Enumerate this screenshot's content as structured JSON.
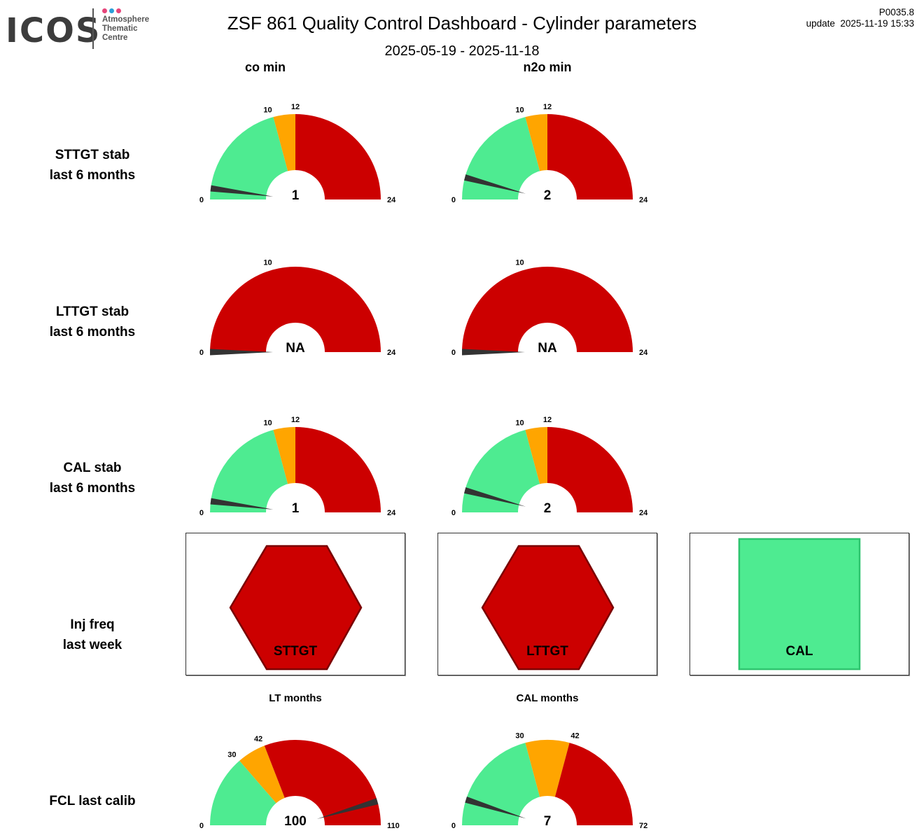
{
  "header": {
    "title": "ZSF 861 Quality Control Dashboard - Cylinder parameters",
    "date_range": "2025-05-19 - 2025-11-18",
    "code": "P0035.8",
    "update": "update  2025-11-19 15:33"
  },
  "logo": {
    "word": "ICOS",
    "lines": [
      "Atmosphere",
      "Thematic",
      "Centre"
    ],
    "dot_colors": [
      "#e6457a",
      "#2a9fd8",
      "#e6457a"
    ]
  },
  "colors": {
    "red": "#cc0000",
    "orange": "#ffa500",
    "green": "#4eeb91",
    "needle": "#333333",
    "hexagon_border": "#7a0000",
    "square_border": "#2fc46f"
  },
  "columns": [
    "co min",
    "n2o min"
  ],
  "rows": [
    {
      "line1": "STTGT stab",
      "line2": "last 6 months"
    },
    {
      "line1": "LTTGT stab",
      "line2": "last 6 months"
    },
    {
      "line1": "CAL stab",
      "line2": "last 6 months"
    },
    {
      "line1": "Inj freq",
      "line2": "last week"
    },
    {
      "line1": "FCL last calib",
      "line2": ""
    }
  ],
  "gauges": [
    {
      "id": "sttgt-co",
      "title": "",
      "min": 0,
      "max": 24,
      "value": 1,
      "display": "1",
      "bands": [
        {
          "from": 0,
          "to": 10,
          "color": "green"
        },
        {
          "from": 10,
          "to": 12,
          "color": "orange"
        },
        {
          "from": 12,
          "to": 24,
          "color": "red"
        }
      ],
      "tick_labels": [
        "0",
        "10",
        "12",
        "24"
      ]
    },
    {
      "id": "sttgt-n2o",
      "title": "",
      "min": 0,
      "max": 24,
      "value": 2,
      "display": "2",
      "bands": [
        {
          "from": 0,
          "to": 10,
          "color": "green"
        },
        {
          "from": 10,
          "to": 12,
          "color": "orange"
        },
        {
          "from": 12,
          "to": 24,
          "color": "red"
        }
      ],
      "tick_labels": [
        "0",
        "10",
        "12",
        "24"
      ]
    },
    {
      "id": "lttgt-co",
      "title": "",
      "min": 0,
      "max": 24,
      "value": 0,
      "display": "NA",
      "bands": [
        {
          "from": 0,
          "to": 24,
          "color": "red"
        }
      ],
      "tick_labels": [
        "0",
        "10",
        "24"
      ]
    },
    {
      "id": "lttgt-n2o",
      "title": "",
      "min": 0,
      "max": 24,
      "value": 0,
      "display": "NA",
      "bands": [
        {
          "from": 0,
          "to": 24,
          "color": "red"
        }
      ],
      "tick_labels": [
        "0",
        "10",
        "24"
      ]
    },
    {
      "id": "cal-co",
      "title": "",
      "min": 0,
      "max": 24,
      "value": 1,
      "display": "1",
      "bands": [
        {
          "from": 0,
          "to": 10,
          "color": "green"
        },
        {
          "from": 10,
          "to": 12,
          "color": "orange"
        },
        {
          "from": 12,
          "to": 24,
          "color": "red"
        }
      ],
      "tick_labels": [
        "0",
        "10",
        "12",
        "24"
      ]
    },
    {
      "id": "cal-n2o",
      "title": "",
      "min": 0,
      "max": 24,
      "value": 2,
      "display": "2",
      "bands": [
        {
          "from": 0,
          "to": 10,
          "color": "green"
        },
        {
          "from": 10,
          "to": 12,
          "color": "orange"
        },
        {
          "from": 12,
          "to": 24,
          "color": "red"
        }
      ],
      "tick_labels": [
        "0",
        "10",
        "12",
        "24"
      ]
    },
    {
      "id": "fcl-lt",
      "title": "LT months",
      "min": 0,
      "max": 110,
      "value": 100,
      "display": "100",
      "bands": [
        {
          "from": 0,
          "to": 30,
          "color": "green"
        },
        {
          "from": 30,
          "to": 42,
          "color": "orange"
        },
        {
          "from": 42,
          "to": 110,
          "color": "red"
        }
      ],
      "tick_labels": [
        "0",
        "30",
        "42",
        "110"
      ]
    },
    {
      "id": "fcl-cal",
      "title": "CAL months",
      "min": 0,
      "max": 72,
      "value": 7,
      "display": "7",
      "bands": [
        {
          "from": 0,
          "to": 30,
          "color": "green"
        },
        {
          "from": 30,
          "to": 42,
          "color": "orange"
        },
        {
          "from": 42,
          "to": 72,
          "color": "red"
        }
      ],
      "tick_labels": [
        "0",
        "30",
        "42",
        "72"
      ]
    }
  ],
  "indicators": [
    {
      "label": "STTGT",
      "shape": "hexagon",
      "color": "red"
    },
    {
      "label": "LTTGT",
      "shape": "hexagon",
      "color": "red"
    },
    {
      "label": "CAL",
      "shape": "square",
      "color": "green"
    }
  ]
}
